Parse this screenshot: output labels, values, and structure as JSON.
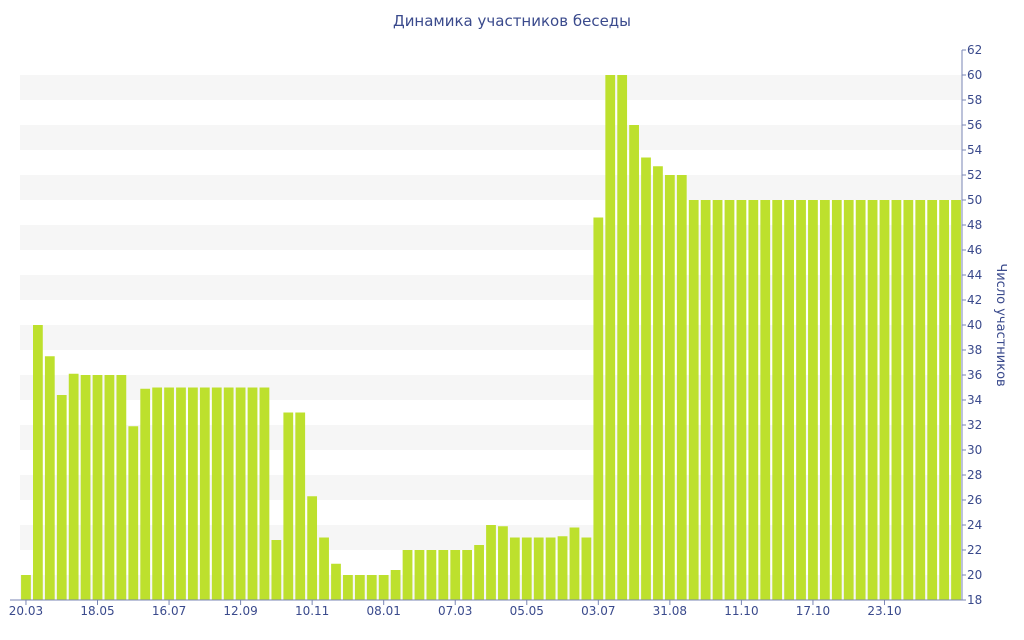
{
  "chart_data": {
    "type": "bar",
    "title": "Динамика участников беседы",
    "ylabel": "Число участников",
    "xlabel": "",
    "ylim": [
      18,
      62
    ],
    "ytick_step": 2,
    "grid": "horizontal bands",
    "y_axis_side": "right",
    "bar_color": "#bde02d",
    "band_color": "#f6f6f6",
    "text_color": "#3a4a8c",
    "x_tick_labels": [
      "20.03",
      "18.05",
      "16.07",
      "12.09",
      "10.11",
      "08.01",
      "07.03",
      "05.05",
      "03.07",
      "31.08",
      "11.10",
      "17.10",
      "23.10"
    ],
    "x_tick_positions": [
      0,
      6,
      12,
      18,
      24,
      30,
      36,
      42,
      48,
      54,
      60,
      66,
      72
    ],
    "values": [
      20,
      40,
      37.5,
      34.4,
      36.1,
      36,
      36,
      36,
      36,
      31.9,
      34.9,
      35,
      35,
      35,
      35,
      35,
      35,
      35,
      35,
      35,
      35,
      22.8,
      33,
      33,
      26.3,
      23,
      20.9,
      20,
      20,
      20,
      20,
      20.4,
      22,
      22,
      22,
      22,
      22,
      22,
      22.4,
      24,
      23.9,
      23,
      23,
      23,
      23,
      23.1,
      23.8,
      23,
      48.6,
      60,
      60,
      56,
      53.4,
      52.7,
      52,
      52,
      50,
      50,
      50,
      50,
      50,
      50,
      50,
      50,
      50,
      50,
      50,
      50,
      50,
      50,
      50,
      50,
      50,
      50,
      50,
      50,
      50,
      50,
      50
    ]
  }
}
